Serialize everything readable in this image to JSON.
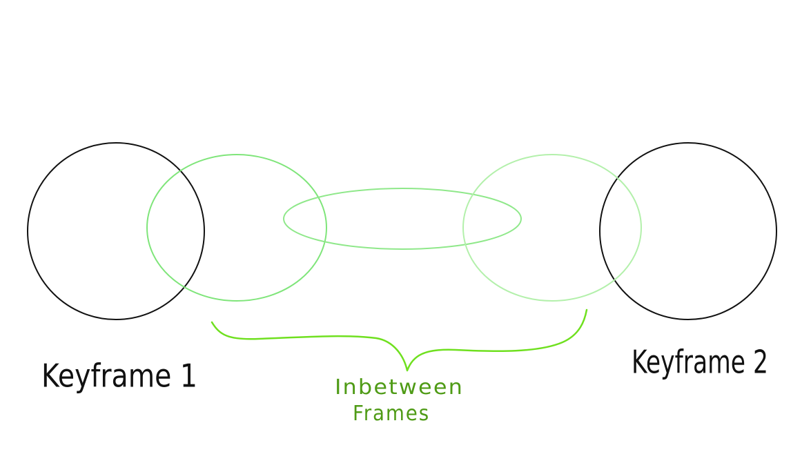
{
  "diagram": {
    "keyframe_1_label": "Keyframe 1",
    "keyframe_2_label": "Keyframe 2",
    "inbetween_label_line1": "Inbetween",
    "inbetween_label_line2": "Frames"
  },
  "colors": {
    "keyframe": "#111111",
    "inbetween_1": "#7fe57a",
    "inbetween_2": "#8fe88a",
    "inbetween_3": "#b3f0ab",
    "brace": "#6fe01f",
    "inbetween_label": "#4f9b16"
  }
}
